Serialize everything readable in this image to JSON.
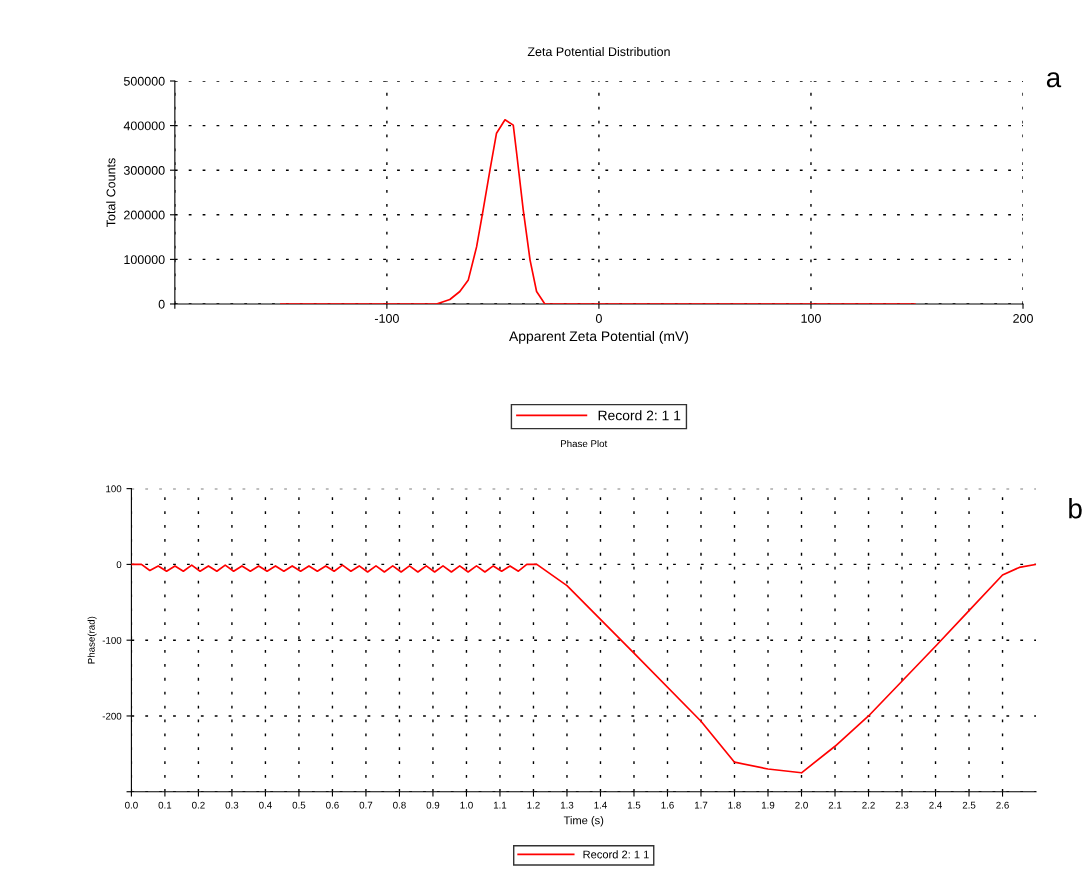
{
  "chart_data": [
    {
      "type": "line",
      "title": "Zeta Potential Distribution",
      "xlabel": "Apparent Zeta Potential (mV)",
      "ylabel": "Total Counts",
      "annotations": [
        "a"
      ],
      "x": [
        -150,
        -100,
        -76.6,
        -70.3,
        -65.6,
        -61.6,
        -57.7,
        -54.6,
        -51.4,
        -48.3,
        -44.3,
        -40.4,
        -38.8,
        -35.7,
        -32.5,
        -29.4,
        -25.5,
        0,
        100,
        149
      ],
      "series": [
        {
          "name": "Record 2: 1 1",
          "color": "#ff0000",
          "values": [
            0,
            0,
            0,
            10000,
            28000,
            54000,
            128000,
            211000,
            300000,
            383000,
            413000,
            401000,
            338000,
            211000,
            99000,
            28000,
            0,
            0,
            0,
            0
          ]
        }
      ],
      "xlim": [
        -200,
        200
      ],
      "xticks": [
        {
          "value": -200,
          "label": null
        },
        -100,
        0,
        100,
        200
      ],
      "ylim": [
        0,
        500000
      ],
      "yticks": [
        0,
        100000,
        200000,
        300000,
        400000,
        500000
      ],
      "grid": true,
      "legend": "bottom",
      "line_style": "solid",
      "marker": "none"
    },
    {
      "type": "line",
      "title": "Phase Plot",
      "xlabel": "Time (s)",
      "ylabel": "Phase(rad)",
      "annotations": [
        "b"
      ],
      "x": [
        0,
        0.03,
        0.055,
        0.08,
        0.105,
        0.13,
        0.155,
        0.18,
        0.205,
        0.23,
        0.255,
        0.28,
        0.305,
        0.33,
        0.355,
        0.38,
        0.405,
        0.43,
        0.455,
        0.48,
        0.505,
        0.53,
        0.555,
        0.58,
        0.605,
        0.63,
        0.655,
        0.68,
        0.705,
        0.73,
        0.755,
        0.78,
        0.805,
        0.83,
        0.855,
        0.88,
        0.905,
        0.93,
        0.955,
        0.98,
        1.005,
        1.03,
        1.055,
        1.08,
        1.105,
        1.13,
        1.155,
        1.18,
        1.21,
        1.3,
        1.5,
        1.7,
        1.8,
        1.9,
        2.0,
        2.1,
        2.2,
        2.4,
        2.5,
        2.6,
        2.65,
        2.7
      ],
      "series": [
        {
          "name": "Record 2: 1 1",
          "color": "#ff0000",
          "values": [
            0,
            0,
            -8,
            -2,
            -9,
            -2,
            -9,
            -1,
            -9,
            -2,
            -9,
            -1,
            -9,
            -2,
            -9,
            -2,
            -9,
            -2,
            -9,
            -2,
            -9,
            -2,
            -9,
            -2,
            -9,
            -1,
            -9,
            -2,
            -10,
            -2,
            -10,
            -2,
            -10,
            -2,
            -10,
            -2,
            -10,
            -2,
            -10,
            -2,
            -10,
            -2,
            -10,
            -2,
            -9,
            -2,
            -9,
            0,
            0,
            -28,
            -117,
            -207,
            -261,
            -270,
            -275,
            -240,
            -200,
            -108,
            -61,
            -14,
            -4,
            0
          ]
        }
      ],
      "xlim": [
        0,
        2.7
      ],
      "xticks": [
        {
          "value": 0,
          "label": "0.0"
        },
        0.1,
        0.2,
        0.3,
        0.4,
        0.5,
        0.6,
        0.7,
        0.8,
        0.9,
        {
          "value": 1,
          "label": "1.0"
        },
        1.1,
        1.2,
        1.3,
        1.4,
        1.5,
        1.6,
        1.7,
        1.8,
        1.9,
        {
          "value": 2,
          "label": "2.0"
        },
        2.1,
        2.2,
        2.3,
        2.4,
        2.5,
        2.6
      ],
      "ylim": [
        -300,
        100
      ],
      "yticks": [
        {
          "value": -300,
          "label": null
        },
        -200,
        -100,
        0,
        100
      ],
      "grid": true,
      "legend": "bottom",
      "line_style": "solid",
      "marker": "none"
    }
  ]
}
